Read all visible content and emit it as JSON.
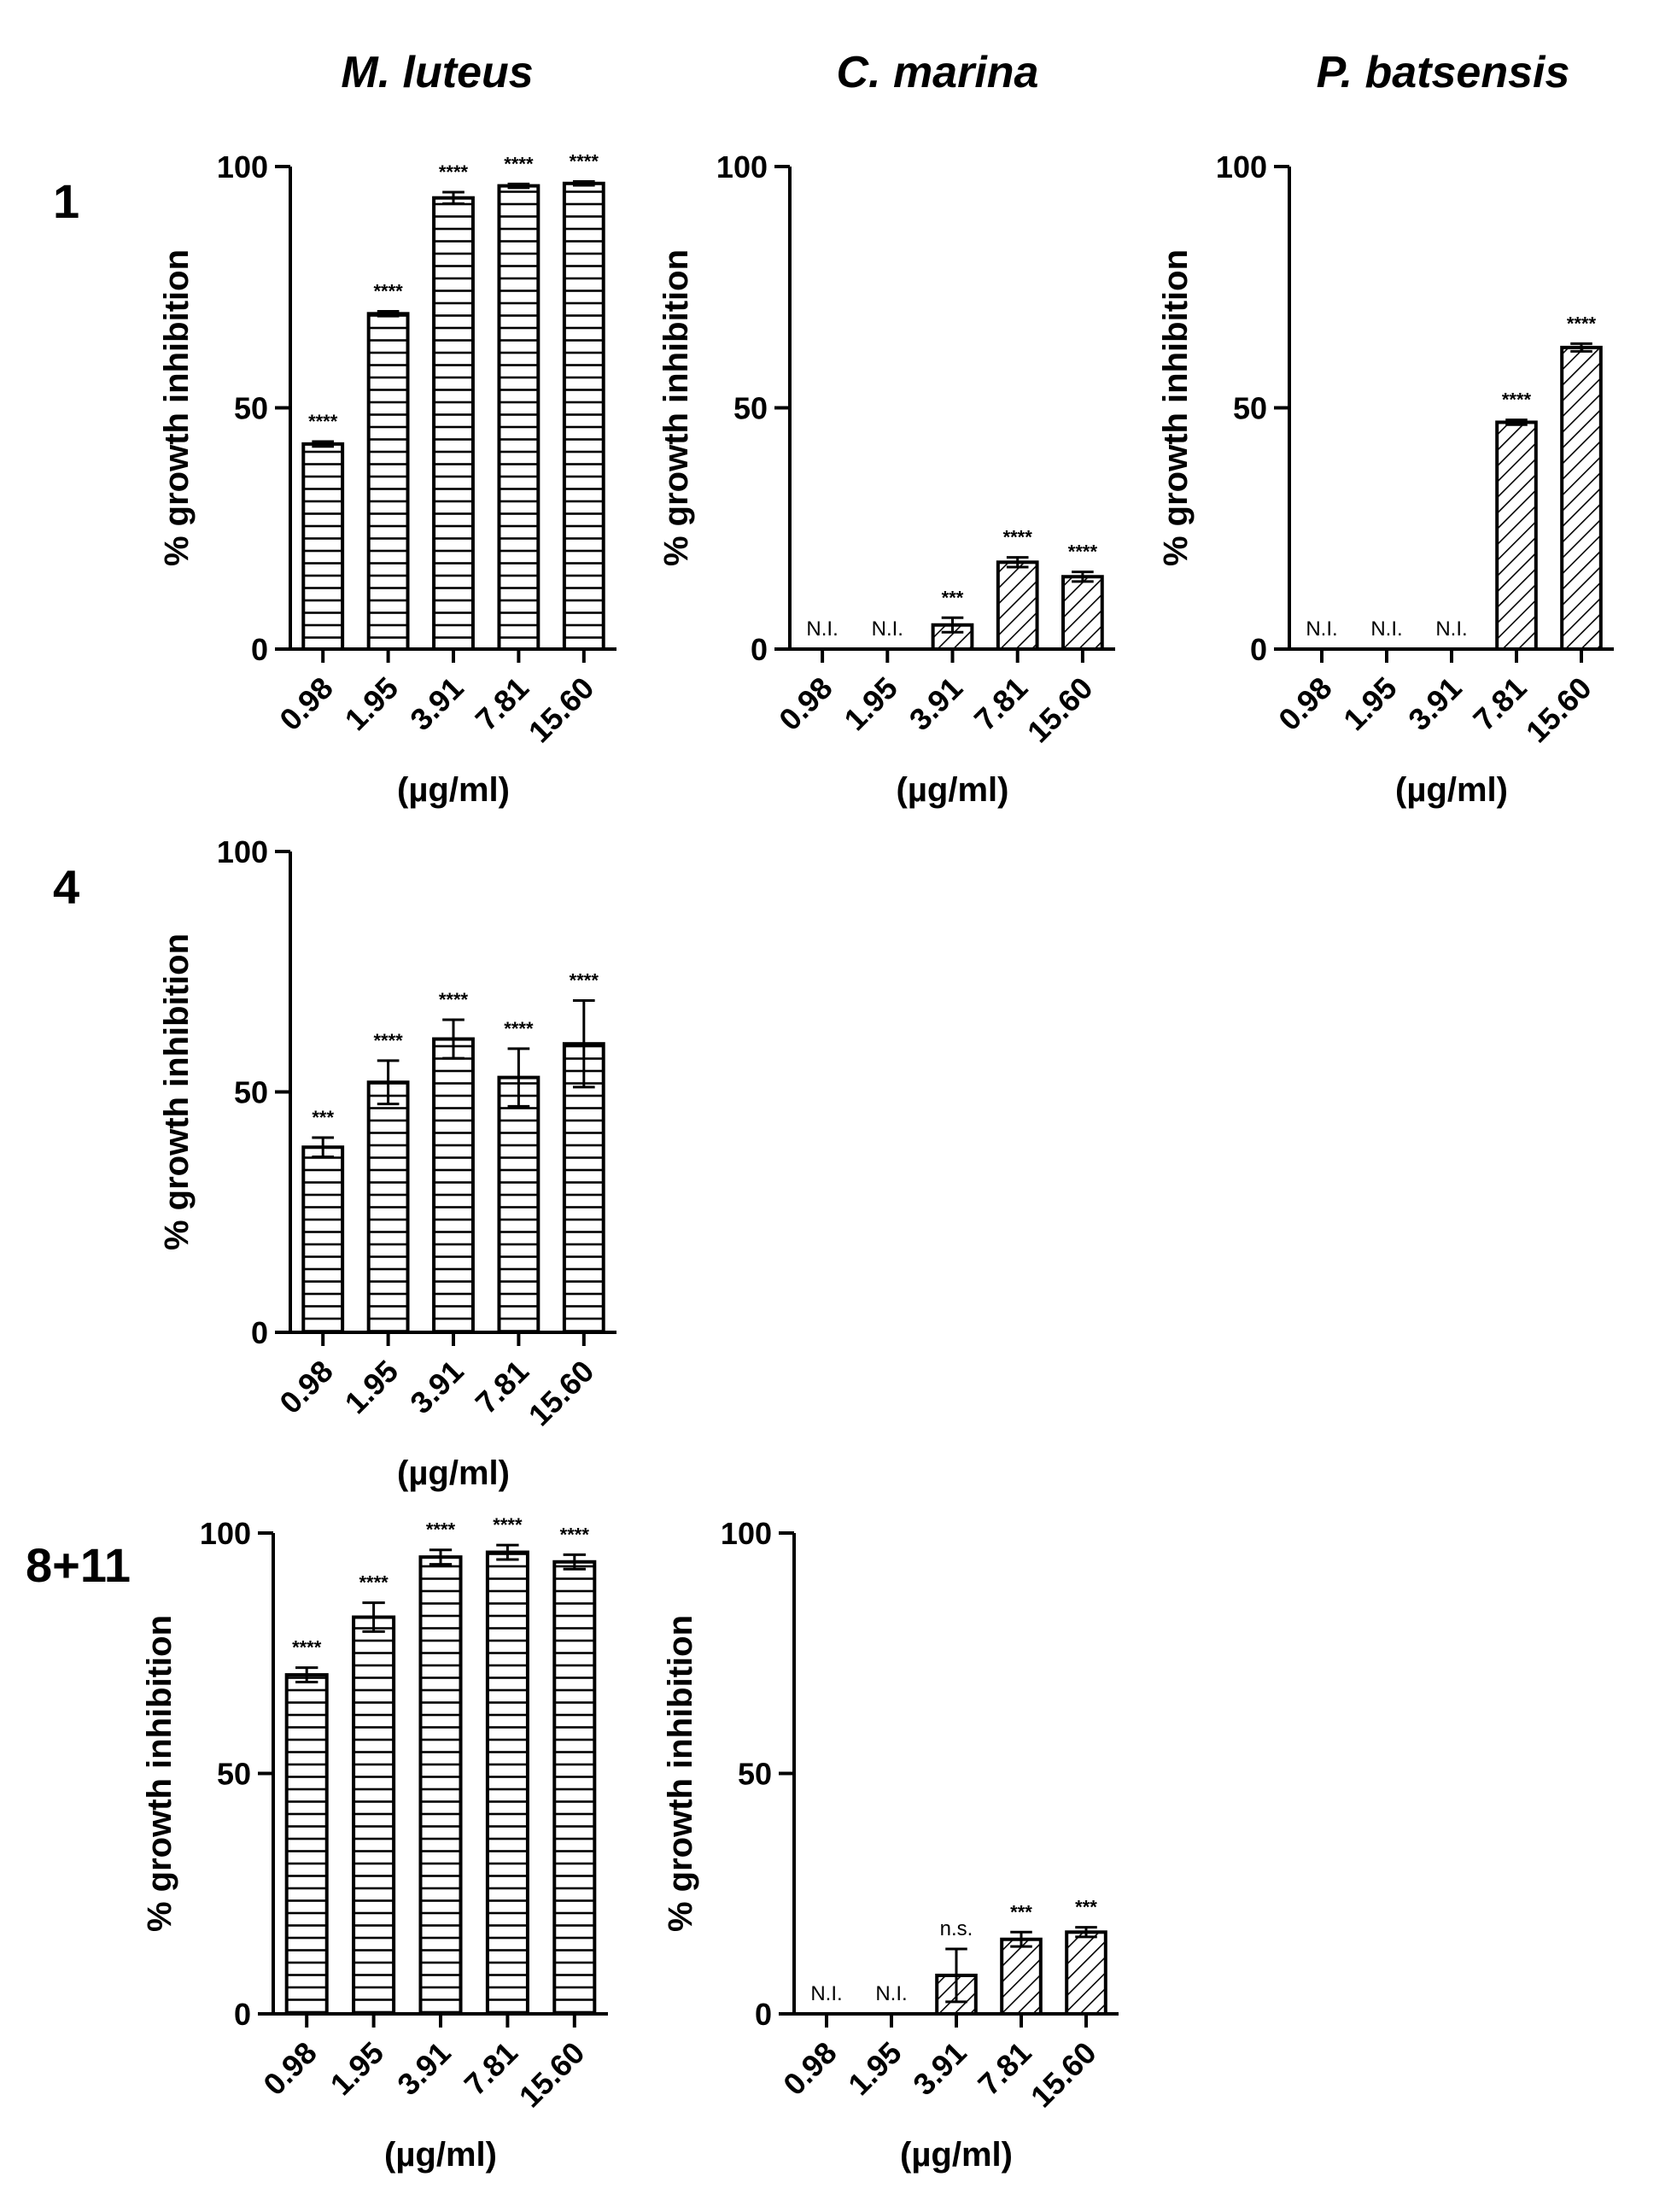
{
  "column_titles": [
    "M. luteus",
    "C. marina",
    "P. batsensis"
  ],
  "row_labels": [
    "1",
    "4",
    "8+11"
  ],
  "chart_data": [
    {
      "type": "bar",
      "row": "1",
      "organism": "M. luteus",
      "pattern": "horizontal",
      "categories": [
        "0.98",
        "1.95",
        "3.91",
        "7.81",
        "15.60"
      ],
      "values": [
        42.5,
        69.5,
        93.5,
        96,
        96.5
      ],
      "errors": [
        0.5,
        0.5,
        1.2,
        0.4,
        0.4
      ],
      "annotations": [
        "****",
        "****",
        "****",
        "****",
        "****"
      ],
      "ylabel": "% growth inhibition",
      "xlabel": "(µg/ml)",
      "ylim": [
        0,
        100
      ],
      "yticks": [
        "0",
        "50",
        "100"
      ]
    },
    {
      "type": "bar",
      "row": "1",
      "organism": "C. marina",
      "pattern": "diagonal",
      "categories": [
        "0.98",
        "1.95",
        "3.91",
        "7.81",
        "15.60"
      ],
      "values": [
        null,
        null,
        5,
        18,
        15
      ],
      "errors": [
        0,
        0,
        1.5,
        1,
        1
      ],
      "annotations": [
        "N.I.",
        "N.I.",
        "***",
        "****",
        "****"
      ],
      "ylabel": "% growth inhibition",
      "xlabel": "(µg/ml)",
      "ylim": [
        0,
        100
      ],
      "yticks": [
        "0",
        "50",
        "100"
      ]
    },
    {
      "type": "bar",
      "row": "1",
      "organism": "P. batsensis",
      "pattern": "diagonal",
      "categories": [
        "0.98",
        "1.95",
        "3.91",
        "7.81",
        "15.60"
      ],
      "values": [
        null,
        null,
        null,
        47,
        62.5
      ],
      "errors": [
        0,
        0,
        0,
        0.5,
        0.8
      ],
      "annotations": [
        "N.I.",
        "N.I.",
        "N.I.",
        "****",
        "****"
      ],
      "ylabel": "% growth inhibition",
      "xlabel": "(µg/ml)",
      "ylim": [
        0,
        100
      ],
      "yticks": [
        "0",
        "50",
        "100"
      ]
    },
    {
      "type": "bar",
      "row": "4",
      "organism": "M. luteus",
      "pattern": "horizontal",
      "categories": [
        "0.98",
        "1.95",
        "3.91",
        "7.81",
        "15.60"
      ],
      "values": [
        38.5,
        52,
        61,
        53,
        60
      ],
      "errors": [
        2,
        4.5,
        4,
        6,
        9
      ],
      "annotations": [
        "***",
        "****",
        "****",
        "****",
        "****"
      ],
      "ylabel": "% growth inhibition",
      "xlabel": "(µg/ml)",
      "ylim": [
        0,
        100
      ],
      "yticks": [
        "0",
        "50",
        "100"
      ]
    },
    {
      "type": "bar",
      "row": "8+11",
      "organism": "M. luteus",
      "pattern": "horizontal",
      "categories": [
        "0.98",
        "1.95",
        "3.91",
        "7.81",
        "15.60"
      ],
      "values": [
        70.5,
        82.5,
        95,
        96,
        94
      ],
      "errors": [
        1.5,
        3,
        1.5,
        1.5,
        1.5
      ],
      "annotations": [
        "****",
        "****",
        "****",
        "****",
        "****"
      ],
      "ylabel": "% growth inhibition",
      "xlabel": "(µg/ml)",
      "ylim": [
        0,
        100
      ],
      "yticks": [
        "0",
        "50",
        "100"
      ]
    },
    {
      "type": "bar",
      "row": "8+11",
      "organism": "C. marina",
      "pattern": "diagonal",
      "categories": [
        "0.98",
        "1.95",
        "3.91",
        "7.81",
        "15.60"
      ],
      "values": [
        null,
        null,
        8,
        15.5,
        17
      ],
      "errors": [
        0,
        0,
        5.5,
        1.5,
        1
      ],
      "annotations": [
        "N.I.",
        "N.I.",
        "n.s.",
        "***",
        "***"
      ],
      "ylabel": "% growth inhibition",
      "xlabel": "(µg/ml)",
      "ylim": [
        0,
        100
      ],
      "yticks": [
        "0",
        "50",
        "100"
      ]
    }
  ]
}
